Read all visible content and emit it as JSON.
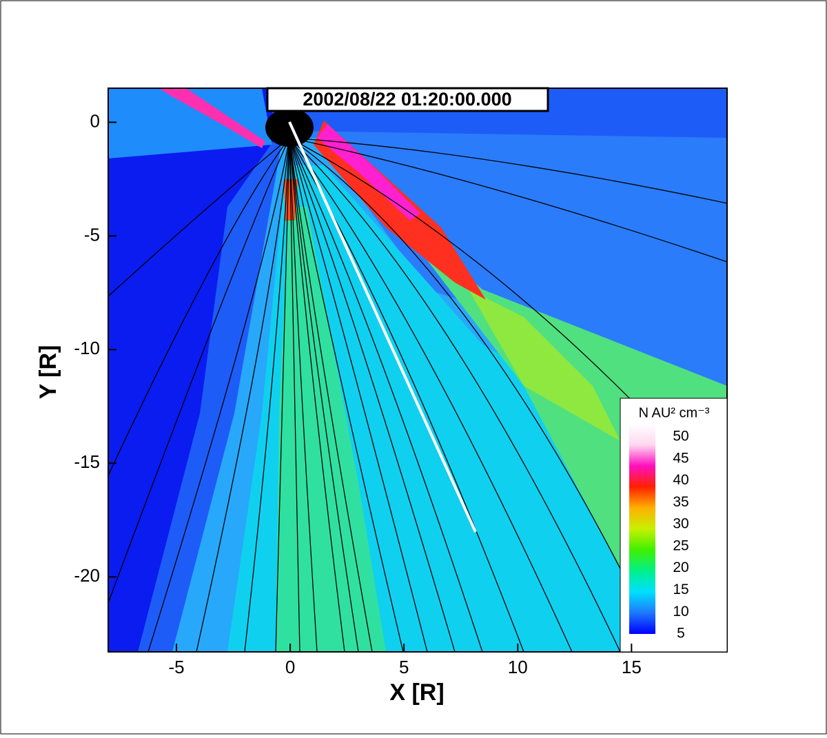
{
  "chart_data": {
    "type": "contour",
    "title": "2002/08/22 01:20:00.000",
    "x_label": "X [R]",
    "y_label": "Y [R]",
    "xlim": [
      -8,
      19.2
    ],
    "ylim": [
      -23.3,
      1.5
    ],
    "xticks": [
      -5,
      0,
      5,
      10,
      15
    ],
    "yticks": [
      0,
      -5,
      -10,
      -15,
      -20
    ],
    "colorbar": {
      "label": "N AU² cm⁻³",
      "lim": [
        5,
        53
      ],
      "ticks": [
        5,
        10,
        15,
        20,
        25,
        30,
        35,
        40,
        45,
        50
      ],
      "colormap": [
        "#0000ff",
        "#1e78ff",
        "#00e0ff",
        "#00f08a",
        "#40f000",
        "#c8f000",
        "#ffb000",
        "#ff2000",
        "#ff10c0",
        "#ffd8f0",
        "#ffffff"
      ]
    }
  }
}
